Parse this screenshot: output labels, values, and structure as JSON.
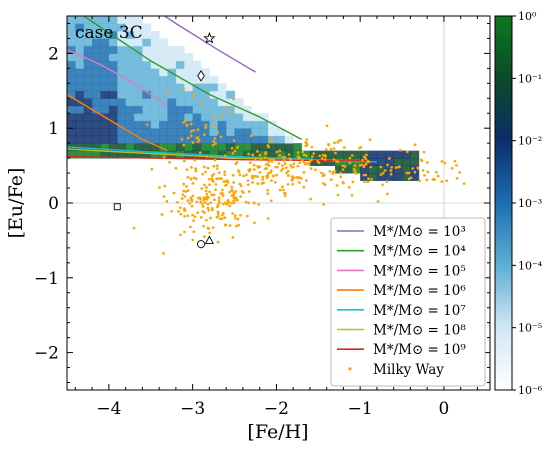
{
  "chart_data": {
    "type": "scatter",
    "annotation": "case 3C",
    "xlabel": "[Fe/H]",
    "ylabel": "[Eu/Fe]",
    "xlim": [
      -4.5,
      0.55
    ],
    "ylim": [
      -2.5,
      2.5
    ],
    "xticks": [
      -4,
      -3,
      -2,
      -1,
      0
    ],
    "xtick_labels": [
      "−4",
      "−3",
      "−2",
      "−1",
      "0"
    ],
    "yticks": [
      -2,
      -1,
      0,
      1,
      2
    ],
    "ytick_labels": [
      "−2",
      "−1",
      "0",
      "1",
      "2"
    ],
    "grid": "reference lines at x=0 and y=0",
    "legend_placement": "lower-right",
    "colorbar": {
      "scale": "log",
      "range": [
        1e-06,
        1
      ],
      "ticks": [
        {
          "value": 1.0,
          "label": "10⁰"
        },
        {
          "value": 0.1,
          "label": "10⁻¹"
        },
        {
          "value": 0.01,
          "label": "10⁻²"
        },
        {
          "value": 0.001,
          "label": "10⁻³"
        },
        {
          "value": 0.0001,
          "label": "10⁻⁴"
        },
        {
          "value": 1e-05,
          "label": "10⁻⁵"
        },
        {
          "value": 1e-06,
          "label": "10⁻⁶"
        }
      ],
      "colors": [
        "#ffffff",
        "#cfe7f3",
        "#5fb0d6",
        "#1c6fb0",
        "#0b2d6b",
        "#0a4a2a",
        "#0b7a1e"
      ]
    },
    "series": [
      {
        "name": "M*/M⊙ = 10³",
        "color": "#9467bd",
        "x": [
          -3.6,
          -3.2,
          -2.7,
          -2.25
        ],
        "y": [
          2.7,
          2.4,
          2.05,
          1.75
        ],
        "style": "line"
      },
      {
        "name": "M*/M⊙ = 10⁴",
        "color": "#2ca02c",
        "x": [
          -4.3,
          -3.5,
          -2.8,
          -2.2,
          -1.7
        ],
        "y": [
          2.5,
          1.9,
          1.45,
          1.15,
          0.85
        ],
        "style": "line"
      },
      {
        "name": "M*/M⊙ = 10⁵",
        "color": "#e377c2",
        "x": [
          -4.5,
          -4.1,
          -3.7,
          -3.3
        ],
        "y": [
          2.05,
          1.85,
          1.6,
          1.3
        ],
        "style": "line"
      },
      {
        "name": "M*/M⊙ = 10⁶",
        "color": "#ff7f0e",
        "x": [
          -4.5,
          -4.2,
          -3.9,
          -3.6,
          -3.3
        ],
        "y": [
          1.45,
          1.25,
          1.05,
          0.85,
          0.7
        ],
        "style": "line"
      },
      {
        "name": "M*/M⊙ = 10⁷",
        "color": "#17becf",
        "x": [
          -4.5,
          -3.5,
          -2.5,
          -1.5,
          -0.8
        ],
        "y": [
          0.75,
          0.68,
          0.62,
          0.58,
          0.55
        ],
        "style": "line"
      },
      {
        "name": "M*/M⊙ = 10⁸",
        "color": "#bcbd22",
        "x": [
          -4.5,
          -3.5,
          -2.5,
          -1.5,
          -0.9
        ],
        "y": [
          0.72,
          0.66,
          0.6,
          0.57,
          0.55
        ],
        "style": "line"
      },
      {
        "name": "M*/M⊙ = 10⁹",
        "color": "#d62728",
        "x": [
          -4.5,
          -3.5,
          -2.5,
          -1.5,
          -0.9
        ],
        "y": [
          0.62,
          0.6,
          0.58,
          0.57,
          0.56
        ],
        "style": "line"
      },
      {
        "name": "Milky Way",
        "color": "#ffa500",
        "style": "points",
        "n": 520,
        "clusters": [
          {
            "x": -2.75,
            "y": 0.05,
            "sx": 0.28,
            "sy": 0.25,
            "w": 0.38
          },
          {
            "x": -2.1,
            "y": 0.45,
            "sx": 0.35,
            "sy": 0.2,
            "w": 0.2
          },
          {
            "x": -1.5,
            "y": 0.55,
            "sx": 0.4,
            "sy": 0.2,
            "w": 0.22
          },
          {
            "x": -0.45,
            "y": 0.4,
            "sx": 0.4,
            "sy": 0.12,
            "w": 0.12
          },
          {
            "x": -3.0,
            "y": 0.95,
            "sx": 0.3,
            "sy": 0.3,
            "w": 0.08
          }
        ]
      }
    ],
    "markers": [
      {
        "shape": "star",
        "x": -2.8,
        "y": 2.2
      },
      {
        "shape": "diamond",
        "x": -2.9,
        "y": 1.7
      },
      {
        "shape": "square",
        "x": -3.9,
        "y": -0.05
      },
      {
        "shape": "circle",
        "x": -2.9,
        "y": -0.55
      },
      {
        "shape": "triangle",
        "x": -2.8,
        "y": -0.5
      }
    ]
  }
}
